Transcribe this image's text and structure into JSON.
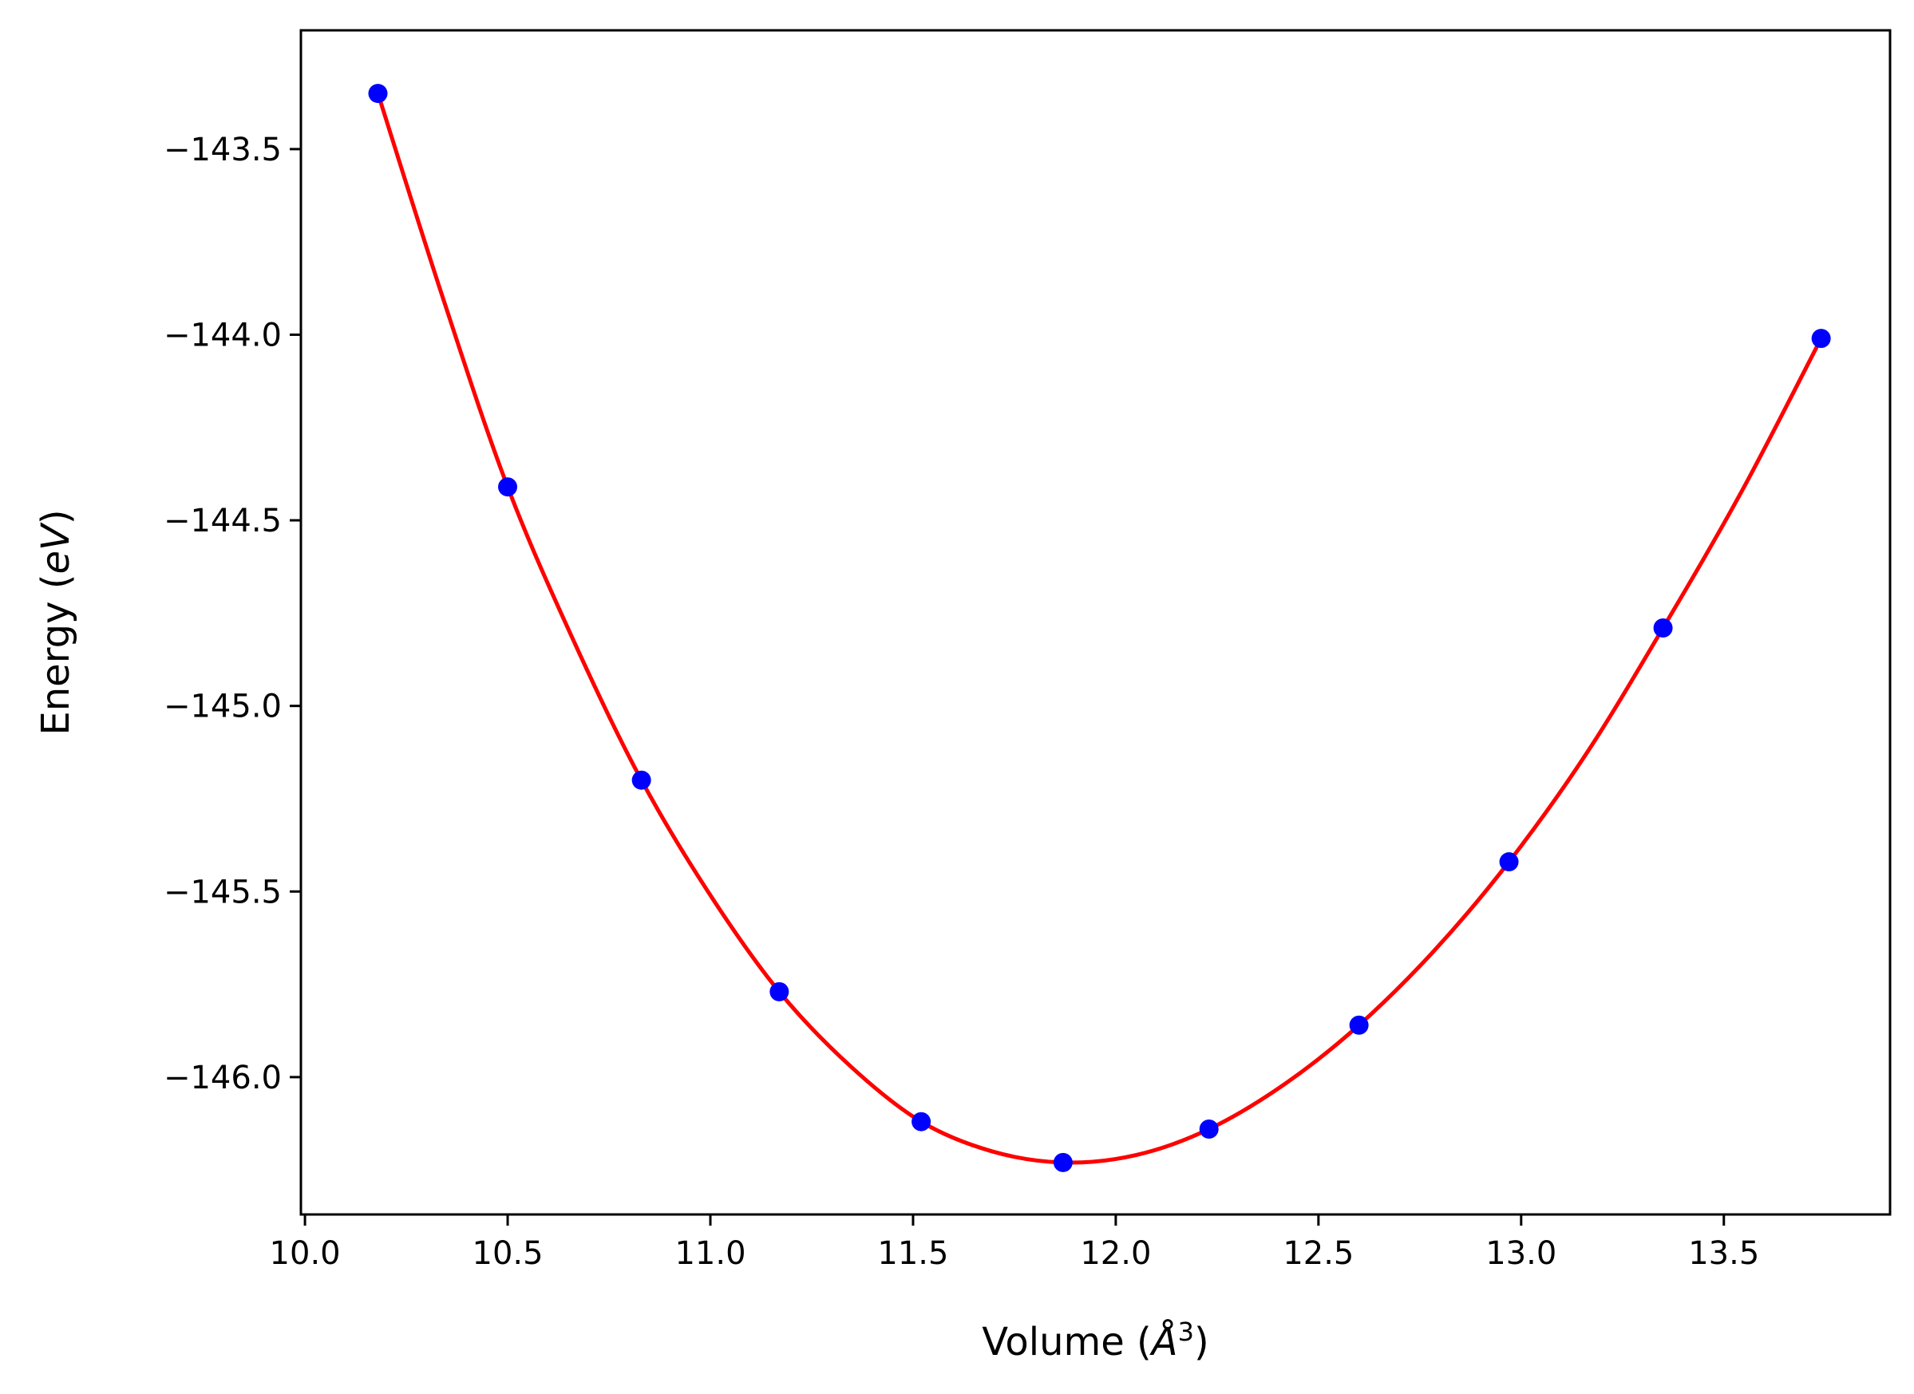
{
  "chart_data": {
    "type": "scatter",
    "xlabel": "Volume (Å³)",
    "xlabel_parts": {
      "main": "Volume (",
      "symbol": "Å",
      "sup": "3",
      "close": ")"
    },
    "ylabel": "Energy (eV)",
    "ylabel_parts": {
      "main": "Energy (",
      "italic": "eV",
      "close": ")"
    },
    "xlim": [
      9.99,
      13.91
    ],
    "ylim": [
      -146.37,
      -143.18
    ],
    "xticks": [
      10.0,
      10.5,
      11.0,
      11.5,
      12.0,
      12.5,
      13.0,
      13.5
    ],
    "xtick_labels": [
      "10.0",
      "10.5",
      "11.0",
      "11.5",
      "12.0",
      "12.5",
      "13.0",
      "13.5"
    ],
    "yticks": [
      -143.5,
      -144.0,
      -144.5,
      -145.0,
      -145.5,
      -146.0
    ],
    "ytick_labels": [
      "−143.5",
      "−144.0",
      "−144.5",
      "−145.0",
      "−145.5",
      "−146.0"
    ],
    "grid": false,
    "series": [
      {
        "kind": "points",
        "color": "#0000ff",
        "x": [
          10.18,
          10.5,
          10.83,
          11.17,
          11.52,
          11.87,
          12.23,
          12.6,
          12.97,
          13.35,
          13.74
        ],
        "y": [
          -143.35,
          -144.41,
          -145.2,
          -145.77,
          -146.12,
          -146.23,
          -146.14,
          -145.86,
          -145.42,
          -144.79,
          -144.01
        ]
      },
      {
        "kind": "fit-curve",
        "color": "#ff0000",
        "x": [
          10.18,
          10.34,
          10.5,
          10.665,
          10.83,
          11.0,
          11.17,
          11.345,
          11.52,
          11.695,
          11.87,
          12.05,
          12.23,
          12.415,
          12.6,
          12.785,
          12.97,
          13.16,
          13.35,
          13.545,
          13.74
        ],
        "y": [
          -143.35,
          -143.9,
          -144.41,
          -144.83,
          -145.2,
          -145.51,
          -145.77,
          -145.97,
          -146.12,
          -146.2,
          -146.23,
          -146.21,
          -146.14,
          -146.02,
          -145.86,
          -145.66,
          -145.42,
          -145.13,
          -144.79,
          -144.42,
          -144.01
        ]
      }
    ]
  }
}
